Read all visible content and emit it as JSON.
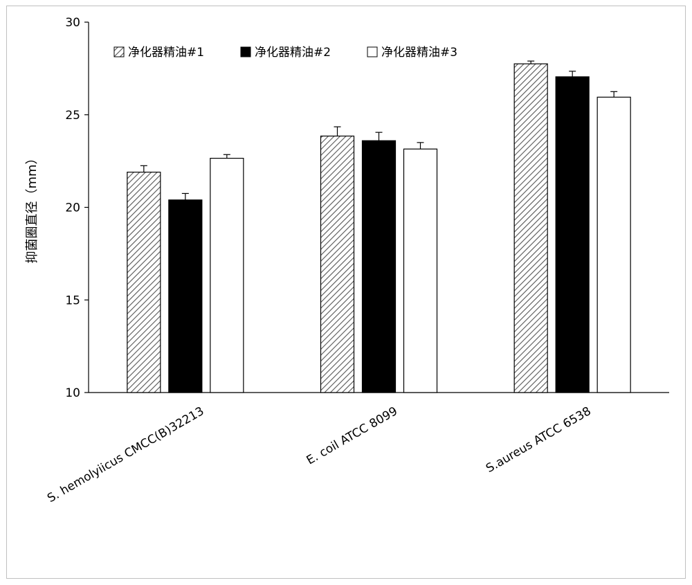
{
  "chart_data": {
    "type": "bar",
    "title": "",
    "xlabel": "",
    "ylabel": "抑菌圈直径（mm）",
    "ylim": [
      10,
      30
    ],
    "yticks": [
      10,
      15,
      20,
      25,
      30
    ],
    "grid": false,
    "legend_position": "top-left",
    "categories": [
      "S. hemolyiicus CMCC(B)32213",
      "E. coil ATCC 8099",
      "S.aureus ATCC 6538"
    ],
    "series": [
      {
        "name": "净化器精油#1",
        "fill": "hatch",
        "values": [
          21.9,
          23.85,
          27.75
        ],
        "errors": [
          0.35,
          0.5,
          0.15
        ]
      },
      {
        "name": "净化器精油#2",
        "fill": "#000000",
        "values": [
          20.4,
          23.6,
          27.05
        ],
        "errors": [
          0.35,
          0.45,
          0.3
        ]
      },
      {
        "name": "净化器精油#3",
        "fill": "#ffffff",
        "values": [
          22.65,
          23.15,
          25.95
        ],
        "errors": [
          0.2,
          0.35,
          0.3
        ]
      }
    ]
  }
}
